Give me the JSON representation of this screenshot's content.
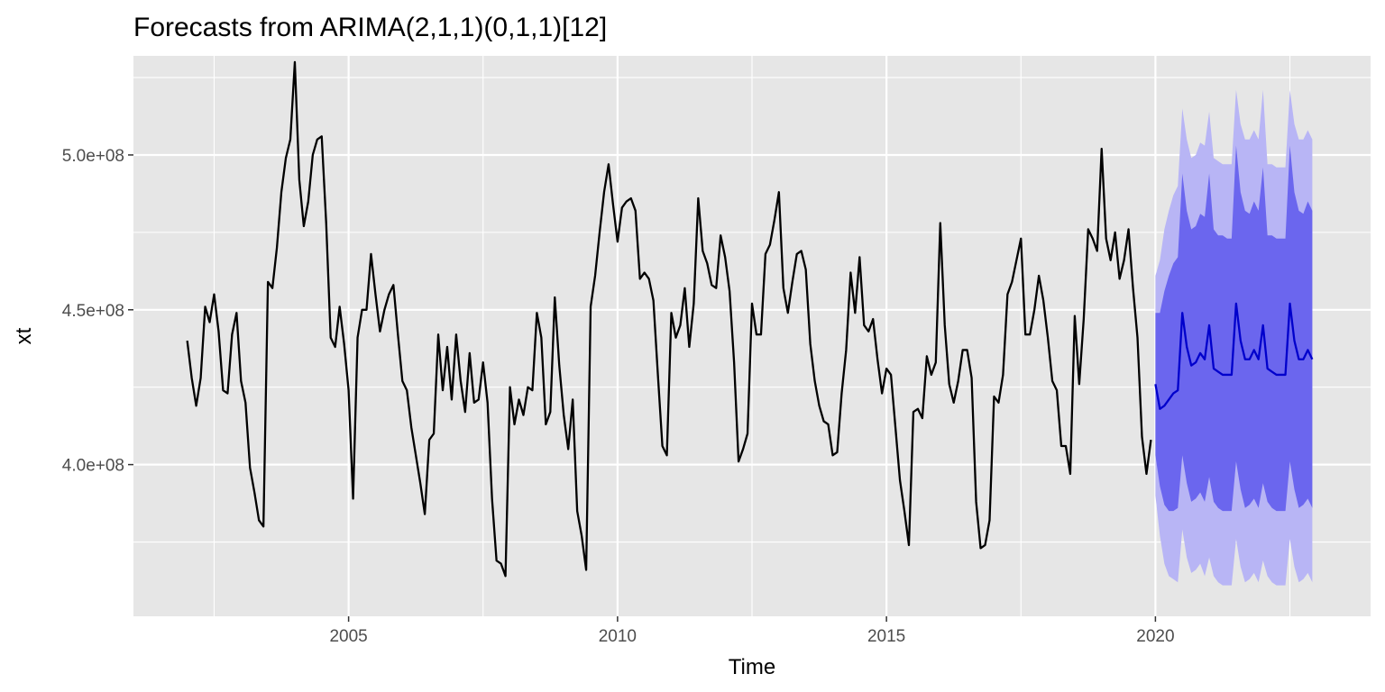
{
  "chart_data": {
    "type": "line",
    "title": "Forecasts from ARIMA(2,1,1)(0,1,1)[12]",
    "xlabel": "Time",
    "ylabel": "xt",
    "xlim": [
      2001.0,
      2024.0
    ],
    "ylim": [
      351000000,
      532000000
    ],
    "x_ticks": [
      2005,
      2010,
      2015,
      2020
    ],
    "x_tick_labels": [
      "2005",
      "2010",
      "2015",
      "2020"
    ],
    "y_ticks": [
      400000000,
      450000000,
      500000000
    ],
    "y_tick_labels": [
      "4.0e+08",
      "4.5e+08",
      "5.0e+08"
    ],
    "y_minor_ticks": [
      375000000,
      425000000,
      475000000,
      525000000
    ],
    "x_minor_ticks": [
      2002.5,
      2007.5,
      2012.5,
      2017.5,
      2022.5
    ],
    "grid": true,
    "legend": "none",
    "colors": {
      "panel": "#e6e6e6",
      "grid": "#ffffff",
      "series": "#000000",
      "forecast": "#0000cc",
      "pi80": "#6b66ee",
      "pi95": "#b8b5f5"
    },
    "series": [
      {
        "role": "observed",
        "start": 2002.0,
        "frequency": 12,
        "values": [
          440000000,
          428000000,
          419000000,
          428000000,
          451000000,
          446000000,
          455000000,
          443000000,
          424000000,
          423000000,
          442000000,
          449000000,
          427000000,
          420000000,
          399000000,
          391000000,
          382000000,
          380000000,
          459000000,
          457000000,
          470000000,
          488000000,
          499000000,
          505000000,
          530000000,
          492000000,
          477000000,
          485000000,
          500000000,
          505000000,
          506000000,
          478000000,
          441000000,
          438000000,
          451000000,
          439000000,
          424000000,
          389000000,
          441000000,
          450000000,
          450000000,
          468000000,
          455000000,
          443000000,
          450000000,
          455000000,
          458000000,
          442000000,
          427000000,
          424000000,
          412000000,
          403000000,
          394000000,
          384000000,
          408000000,
          410000000,
          442000000,
          424000000,
          438000000,
          421000000,
          442000000,
          427000000,
          417000000,
          436000000,
          420000000,
          421000000,
          433000000,
          420000000,
          389000000,
          369000000,
          368000000,
          364000000,
          425000000,
          413000000,
          421000000,
          416000000,
          425000000,
          424000000,
          449000000,
          441000000,
          413000000,
          417000000,
          454000000,
          432000000,
          416000000,
          405000000,
          421000000,
          385000000,
          377000000,
          366000000,
          451000000,
          461000000,
          475000000,
          488000000,
          497000000,
          484000000,
          472000000,
          483000000,
          485000000,
          486000000,
          482000000,
          460000000,
          462000000,
          460000000,
          453000000,
          429000000,
          406000000,
          403000000,
          449000000,
          441000000,
          445000000,
          457000000,
          438000000,
          452000000,
          486000000,
          469000000,
          465000000,
          458000000,
          457000000,
          474000000,
          467000000,
          456000000,
          433000000,
          401000000,
          405000000,
          410000000,
          452000000,
          442000000,
          442000000,
          468000000,
          471000000,
          479000000,
          488000000,
          457000000,
          449000000,
          459000000,
          468000000,
          469000000,
          463000000,
          439000000,
          427000000,
          419000000,
          414000000,
          413000000,
          403000000,
          404000000,
          423000000,
          437000000,
          462000000,
          449000000,
          467000000,
          445000000,
          443000000,
          447000000,
          434000000,
          423000000,
          431000000,
          429000000,
          412000000,
          395000000,
          385000000,
          374000000,
          417000000,
          418000000,
          415000000,
          435000000,
          429000000,
          433000000,
          478000000,
          445000000,
          426000000,
          420000000,
          427000000,
          437000000,
          437000000,
          428000000,
          388000000,
          373000000,
          374000000,
          382000000,
          422000000,
          420000000,
          429000000,
          455000000,
          459000000,
          466000000,
          473000000,
          442000000,
          442000000,
          450000000,
          461000000,
          453000000,
          441000000,
          427000000,
          424000000,
          406000000,
          406000000,
          397000000,
          448000000,
          426000000,
          447000000,
          476000000,
          473000000,
          469000000,
          502000000,
          473000000,
          466000000,
          475000000,
          460000000,
          466000000,
          476000000,
          457000000,
          441000000,
          409000000,
          397000000,
          408000000
        ]
      },
      {
        "role": "point-forecast",
        "start": 2020.0,
        "frequency": 12,
        "values": [
          426000000,
          418000000,
          419000000,
          421000000,
          423000000,
          424000000,
          449000000,
          438000000,
          432000000,
          433000000,
          436000000,
          434000000,
          445000000,
          431000000,
          430000000,
          429000000,
          429000000,
          429000000,
          452000000,
          440000000,
          434000000,
          434000000,
          437000000,
          434000000,
          445000000,
          431000000,
          430000000,
          429000000,
          429000000,
          429000000,
          452000000,
          440000000,
          434000000,
          434000000,
          437000000,
          434000000
        ]
      }
    ],
    "intervals": [
      {
        "level": 80,
        "start": 2020.0,
        "frequency": 12,
        "lower": [
          403000000,
          393000000,
          387000000,
          385000000,
          385000000,
          386000000,
          403000000,
          394000000,
          388000000,
          389000000,
          391000000,
          388000000,
          396000000,
          388000000,
          386000000,
          385000000,
          385000000,
          385000000,
          401000000,
          392000000,
          386000000,
          387000000,
          389000000,
          386000000,
          394000000,
          388000000,
          386000000,
          385000000,
          385000000,
          385000000,
          401000000,
          392000000,
          386000000,
          387000000,
          389000000,
          386000000
        ],
        "upper": [
          449000000,
          449000000,
          456000000,
          461000000,
          465000000,
          467000000,
          494000000,
          482000000,
          476000000,
          477000000,
          481000000,
          480000000,
          494000000,
          476000000,
          474000000,
          474000000,
          473000000,
          473000000,
          503000000,
          488000000,
          482000000,
          481000000,
          485000000,
          482000000,
          496000000,
          474000000,
          474000000,
          473000000,
          473000000,
          473000000,
          503000000,
          488000000,
          482000000,
          481000000,
          485000000,
          482000000
        ]
      },
      {
        "level": 95,
        "start": 2020.0,
        "frequency": 12,
        "lower": [
          390000000,
          377000000,
          368000000,
          364000000,
          363000000,
          362000000,
          379000000,
          370000000,
          365000000,
          366000000,
          368000000,
          364000000,
          370000000,
          364000000,
          362000000,
          361000000,
          361000000,
          361000000,
          376000000,
          367000000,
          362000000,
          363000000,
          365000000,
          362000000,
          369000000,
          364000000,
          362000000,
          361000000,
          361000000,
          361000000,
          376000000,
          367000000,
          362000000,
          363000000,
          365000000,
          362000000
        ],
        "upper": [
          461000000,
          466000000,
          476000000,
          482000000,
          487000000,
          490000000,
          515000000,
          505000000,
          499000000,
          500000000,
          504000000,
          503000000,
          514000000,
          499000000,
          498000000,
          497000000,
          497000000,
          497000000,
          521000000,
          510000000,
          505000000,
          505000000,
          508000000,
          505000000,
          521000000,
          497000000,
          497000000,
          496000000,
          496000000,
          496000000,
          521000000,
          510000000,
          505000000,
          505000000,
          508000000,
          505000000
        ]
      }
    ]
  }
}
